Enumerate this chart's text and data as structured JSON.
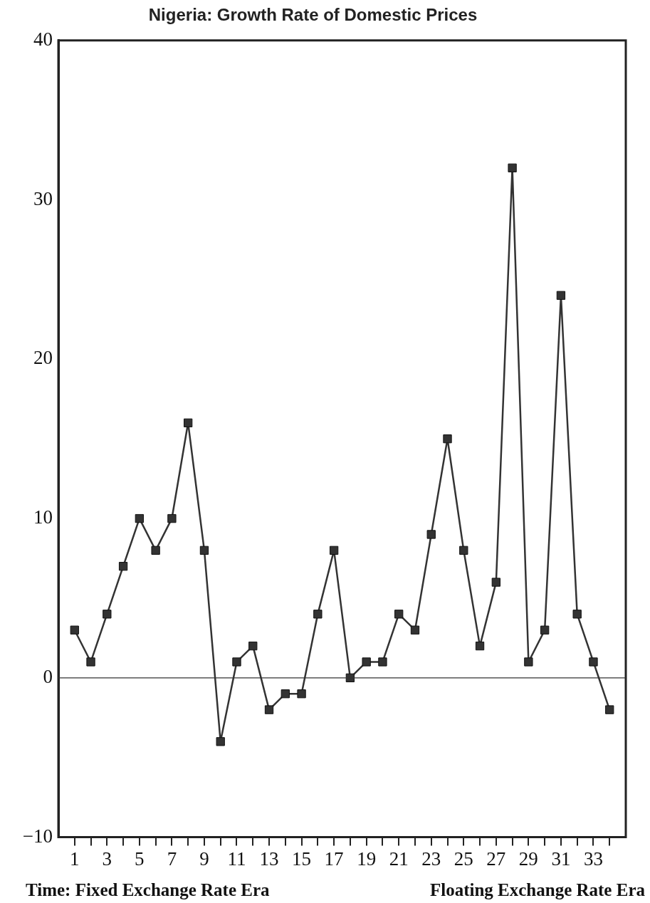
{
  "chart_data": {
    "type": "line",
    "title": "Nigeria: Growth Rate of Domestic Prices",
    "xlabel": "Time: Fixed Exchange Rate Era",
    "annotations": [
      "Floating Exchange Rate Era"
    ],
    "x": [
      1,
      2,
      3,
      4,
      5,
      6,
      7,
      8,
      9,
      10,
      11,
      12,
      13,
      14,
      15,
      16,
      17,
      18,
      19,
      20,
      21,
      22,
      23,
      24,
      25,
      26,
      27,
      28,
      29,
      30,
      31,
      32,
      33,
      34
    ],
    "series": [
      {
        "color": "#333333",
        "values": [
          3,
          1,
          4,
          7,
          10,
          8,
          10,
          16,
          8,
          -4,
          1,
          2,
          -2,
          -1,
          -1,
          4,
          8,
          0,
          1,
          1,
          4,
          3,
          9,
          15,
          8,
          2,
          6,
          32,
          1,
          3,
          24,
          4,
          1,
          -2
        ]
      }
    ],
    "xlim": [
      0,
      35
    ],
    "xticks": [
      1,
      {
        "value": 2,
        "label": null
      },
      3,
      {
        "value": 4,
        "label": null
      },
      5,
      {
        "value": 6,
        "label": null
      },
      7,
      {
        "value": 8,
        "label": null
      },
      9,
      {
        "value": 10,
        "label": null
      },
      11,
      {
        "value": 12,
        "label": null
      },
      13,
      {
        "value": 14,
        "label": null
      },
      15,
      {
        "value": 16,
        "label": null
      },
      17,
      {
        "value": 18,
        "label": null
      },
      19,
      {
        "value": 20,
        "label": null
      },
      21,
      {
        "value": 22,
        "label": null
      },
      23,
      {
        "value": 24,
        "label": null
      },
      25,
      {
        "value": 26,
        "label": null
      },
      27,
      {
        "value": 28,
        "label": null
      },
      29,
      {
        "value": 30,
        "label": null
      },
      31,
      {
        "value": 32,
        "label": null
      },
      33,
      {
        "value": 34,
        "label": null
      }
    ],
    "ylim": [
      -10,
      40
    ],
    "yticks": [
      -10,
      0,
      10,
      20,
      30,
      40
    ],
    "grid": false,
    "marker": "square",
    "line_style": "solid",
    "ref_lines": [
      {
        "axis": "y",
        "value": 0,
        "color": "#333333"
      }
    ]
  }
}
